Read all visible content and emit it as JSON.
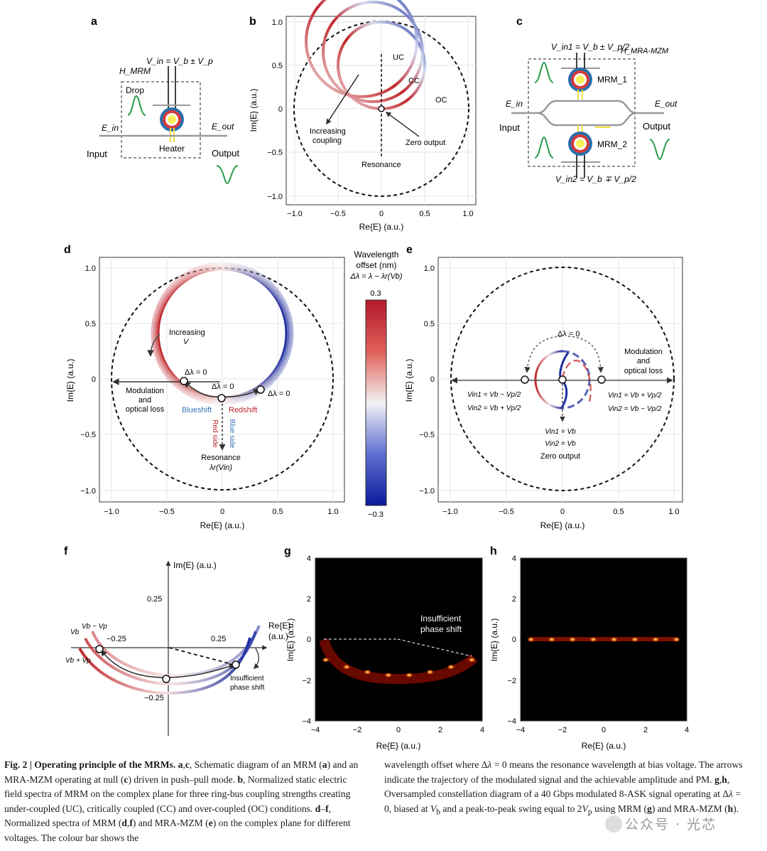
{
  "panels": {
    "a": {
      "letter": "a",
      "vin": "V_in = V_b ± V_p",
      "hmrm": "H_MRM",
      "drop": "Drop",
      "ein": "E_in",
      "eout": "E_out",
      "heater": "Heater",
      "input": "Input",
      "output": "Output"
    },
    "b": {
      "letter": "b",
      "uc": "UC",
      "cc": "CC",
      "oc": "OC",
      "increasing": "Increasing",
      "coupling": "coupling",
      "zero_output": "Zero output",
      "resonance": "Resonance",
      "xlabel": "Re{E} (a.u.)",
      "ylabel": "Im{E} (a.u.)"
    },
    "c": {
      "letter": "c",
      "vin1": "V_in1 = V_b ± V_p/2",
      "vin2": "V_in2 = V_b ∓ V_p/2",
      "h": "H_MRA-MZM",
      "mrm1": "MRM_1",
      "mrm2": "MRM_2",
      "ein": "E_in",
      "eout": "E_out",
      "input": "Input",
      "output": "Output"
    },
    "d": {
      "letter": "d",
      "increasing": "Increasing",
      "v": "V",
      "dl1": "Δλ = 0",
      "dl2": "Δλ = 0",
      "dl3": "Δλ = 0",
      "mod1": "Modulation",
      "mod2": "and",
      "mod3": "optical loss",
      "blueshift": "Blueshift",
      "redshift": "Redshift",
      "red_side": "Red side",
      "blue_side": "Blue side",
      "resonance": "Resonance",
      "lambda": "λr(Vin)",
      "xlabel": "Re{E} (a.u.)",
      "ylabel": "Im{E} (a.u.)"
    },
    "colorbar": {
      "title1": "Wavelength",
      "title2": "offset (nm)",
      "title3": "Δλ = λ − λr(Vb)",
      "max": "0.3",
      "min": "−0.3"
    },
    "e": {
      "letter": "e",
      "dl": "Δλ = 0",
      "mod1": "Modulation",
      "mod2": "and",
      "mod3": "optical loss",
      "left1": "Vin1 = Vb − Vp/2",
      "left2": "Vin2 = Vb + Vp/2",
      "right1": "Vin1 = Vb + Vp/2",
      "right2": "Vin2 = Vb − Vp/2",
      "mid1": "Vin1 = Vb",
      "mid2": "Vin2 = Vb",
      "zero": "Zero output",
      "xlabel": "Re{E} (a.u.)",
      "ylabel": "Im{E} (a.u.)"
    },
    "f": {
      "letter": "f",
      "ylabel": "Im{E} (a.u.)",
      "xlabel": "Re{E}",
      "xlabel2": "(a.u.)",
      "vb": "Vb",
      "vbmvp": "Vb − Vp",
      "vbpvp": "Vb + Vp",
      "insuff1": "Insufficient",
      "insuff2": "phase shift",
      "tick_pos": "0.25",
      "tick_neg": "−0.25"
    },
    "g": {
      "letter": "g",
      "insuff1": "Insufficient",
      "insuff2": "phase shift",
      "xlabel": "Re{E} (a.u.)",
      "ylabel": "Im{E} (a.u.)"
    },
    "h": {
      "letter": "h",
      "xlabel": "Re{E} (a.u.)",
      "ylabel": "Im{E} (a.u.)"
    }
  },
  "ticks": {
    "unit": [
      "−1.0",
      "−0.5",
      "0",
      "0.5",
      "1.0"
    ],
    "unit_y": [
      "1.0",
      "0.5",
      "0",
      "−0.5",
      "−1.0"
    ],
    "four": [
      "−4",
      "−2",
      "0",
      "2",
      "4"
    ],
    "four_y": [
      "4",
      "2",
      "0",
      "−2",
      "−4"
    ]
  },
  "caption": {
    "left_html": "<b>Fig. 2 | Operating principle of the MRMs. a</b>,<b>c</b>, Schematic diagram of an MRM (<b>a</b>) and an MRA-MZM operating at null (<b>c</b>) driven in push–pull mode. <b>b</b>, Normalized static electric field spectra of MRM on the complex plane for three ring-bus coupling strengths creating under-coupled (UC), critically coupled (CC) and over-coupled (OC) conditions. <b>d</b>–<b>f</b>, Normalized spectra of MRM (<b>d</b>,<b>f</b>) and MRA-MZM (<b>e</b>) on the complex plane for different voltages. The colour bar shows the",
    "right_html": "wavelength offset where Δ<i>λ</i> = 0 means the resonance wavelength at bias voltage. The arrows indicate the trajectory of the modulated signal and the achievable amplitude and PM. <b>g</b>,<b>h</b>, Oversampled constellation diagram of a 40 Gbps modulated 8-ASK signal operating at Δ<i>λ</i> = 0, biased at <i>V</i><sub>b</sub> and a peak-to-peak swing equal to 2<i>V</i><sub>p</sub> using MRM (<b>g</b>) and MRA-MZM (<b>h</b>)."
  },
  "watermark": "公众号 · 光芯",
  "chart_data": [
    {
      "type": "scatter",
      "panel": "g",
      "title": "",
      "xlabel": "Re{E} (a.u.)",
      "ylabel": "Im{E} (a.u.)",
      "xlim": [
        -4,
        4
      ],
      "ylim": [
        -4,
        4
      ],
      "x": [
        -3.5,
        -2.5,
        -1.5,
        -0.5,
        0.5,
        1.5,
        2.5,
        3.5
      ],
      "y": [
        -1.0,
        -1.35,
        -1.6,
        -1.75,
        -1.75,
        -1.6,
        -1.35,
        -1.0
      ]
    },
    {
      "type": "scatter",
      "panel": "h",
      "title": "",
      "xlabel": "Re{E} (a.u.)",
      "ylabel": "Im{E} (a.u.)",
      "xlim": [
        -4,
        4
      ],
      "ylim": [
        -4,
        4
      ],
      "x": [
        -3.5,
        -2.5,
        -1.5,
        -0.5,
        0.5,
        1.5,
        2.5,
        3.5
      ],
      "y": [
        0,
        0,
        0,
        0,
        0,
        0,
        0,
        0
      ]
    }
  ],
  "colors": {
    "red": "#c0272d",
    "blue": "#1f2f8f"
  }
}
